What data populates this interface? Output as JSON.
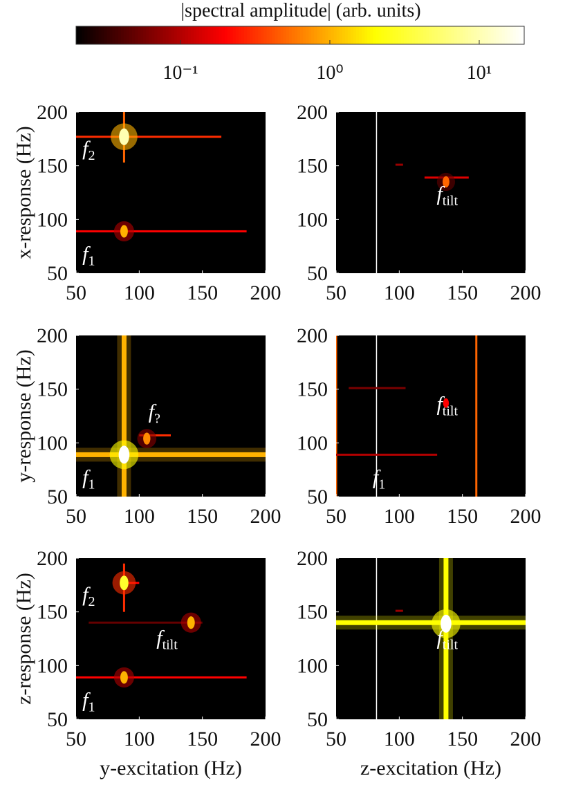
{
  "colorbar": {
    "label": "|spectral amplitude| (arb. units)",
    "scale": "log",
    "lim": [
      0.02,
      20
    ],
    "ticks": [
      {
        "value": 0.1,
        "label": "10⁻¹"
      },
      {
        "value": 1,
        "label": "10⁰"
      },
      {
        "value": 10,
        "label": "10¹"
      }
    ]
  },
  "chart_data": [
    {
      "type": "heatmap",
      "ylabel": "x-response (Hz)",
      "xlim": [
        50,
        200
      ],
      "ylim": [
        50,
        200
      ],
      "xticks": [
        50,
        100,
        150,
        200
      ],
      "yticks": [
        50,
        100,
        150,
        200
      ],
      "lines": [
        {
          "orientation": "v",
          "at": 88,
          "from": 153,
          "to": 200,
          "amplitude": 0.5
        },
        {
          "orientation": "h",
          "at": 177,
          "from": 50,
          "to": 165,
          "amplitude": 0.3
        },
        {
          "orientation": "h",
          "at": 89,
          "from": 50,
          "to": 185,
          "amplitude": 0.2
        }
      ],
      "peaks": [
        {
          "x": 88,
          "y": 177,
          "amplitude": 10
        },
        {
          "x": 88,
          "y": 89,
          "amplitude": 1
        }
      ],
      "annotations": [
        {
          "label": "f",
          "subscript": "2",
          "x": 60,
          "y": 160
        },
        {
          "label": "f",
          "subscript": "1",
          "x": 60,
          "y": 62
        }
      ]
    },
    {
      "type": "heatmap",
      "xlim": [
        50,
        200
      ],
      "ylim": [
        50,
        200
      ],
      "xticks": [
        50,
        100,
        150,
        200
      ],
      "yticks": [
        50,
        100,
        150,
        200
      ],
      "lines": [
        {
          "orientation": "v",
          "at": 82,
          "from": 50,
          "to": 200,
          "amplitude": 20
        },
        {
          "orientation": "h",
          "at": 139,
          "from": 120,
          "to": 155,
          "amplitude": 0.15
        },
        {
          "orientation": "h",
          "at": 151,
          "from": 97,
          "to": 103,
          "amplitude": 0.08
        }
      ],
      "peaks": [
        {
          "x": 137,
          "y": 135,
          "amplitude": 0.5
        }
      ],
      "annotations": [
        {
          "label": "f",
          "subscript": "tilt",
          "x": 138,
          "y": 118
        }
      ]
    },
    {
      "type": "heatmap",
      "ylabel": "y-response (Hz)",
      "xlim": [
        50,
        200
      ],
      "ylim": [
        50,
        200
      ],
      "xticks": [
        50,
        100,
        150,
        200
      ],
      "yticks": [
        50,
        100,
        150,
        200
      ],
      "lines": [
        {
          "orientation": "v",
          "at": 88,
          "from": 50,
          "to": 200,
          "amplitude": 1
        },
        {
          "orientation": "h",
          "at": 89,
          "from": 50,
          "to": 200,
          "amplitude": 1
        },
        {
          "orientation": "h",
          "at": 107,
          "from": 100,
          "to": 125,
          "amplitude": 0.3
        }
      ],
      "peaks": [
        {
          "x": 88,
          "y": 89,
          "amplitude": 20
        },
        {
          "x": 106,
          "y": 104,
          "amplitude": 0.7
        }
      ],
      "annotations": [
        {
          "label": "f",
          "subscript": "?",
          "x": 112,
          "y": 123
        },
        {
          "label": "f",
          "subscript": "1",
          "x": 60,
          "y": 62
        }
      ]
    },
    {
      "type": "heatmap",
      "xlim": [
        50,
        200
      ],
      "ylim": [
        50,
        200
      ],
      "xticks": [
        50,
        100,
        150,
        200
      ],
      "yticks": [
        50,
        100,
        150,
        200
      ],
      "lines": [
        {
          "orientation": "v",
          "at": 82,
          "from": 50,
          "to": 200,
          "amplitude": 20
        },
        {
          "orientation": "v",
          "at": 50,
          "from": 50,
          "to": 200,
          "amplitude": 0.5
        },
        {
          "orientation": "v",
          "at": 161,
          "from": 50,
          "to": 200,
          "amplitude": 0.5
        },
        {
          "orientation": "h",
          "at": 89,
          "from": 50,
          "to": 130,
          "amplitude": 0.1
        },
        {
          "orientation": "h",
          "at": 151,
          "from": 60,
          "to": 105,
          "amplitude": 0.06
        }
      ],
      "peaks": [
        {
          "x": 137,
          "y": 137,
          "amplitude": 0.2
        }
      ],
      "annotations": [
        {
          "label": "f",
          "subscript": "tilt",
          "x": 138,
          "y": 130
        },
        {
          "label": "f",
          "subscript": "1",
          "x": 84,
          "y": 62
        }
      ]
    },
    {
      "type": "heatmap",
      "xlabel": "y-excitation (Hz)",
      "ylabel": "z-response (Hz)",
      "xlim": [
        50,
        200
      ],
      "ylim": [
        50,
        200
      ],
      "xticks": [
        50,
        100,
        150,
        200
      ],
      "yticks": [
        50,
        100,
        150,
        200
      ],
      "lines": [
        {
          "orientation": "v",
          "at": 88,
          "from": 150,
          "to": 195,
          "amplitude": 0.3
        },
        {
          "orientation": "h",
          "at": 177,
          "from": 85,
          "to": 100,
          "amplitude": 0.2
        },
        {
          "orientation": "h",
          "at": 140,
          "from": 60,
          "to": 150,
          "amplitude": 0.05
        },
        {
          "orientation": "h",
          "at": 89,
          "from": 50,
          "to": 185,
          "amplitude": 0.2
        }
      ],
      "peaks": [
        {
          "x": 88,
          "y": 177,
          "amplitude": 3
        },
        {
          "x": 141,
          "y": 140,
          "amplitude": 1
        },
        {
          "x": 88,
          "y": 89,
          "amplitude": 1
        }
      ],
      "annotations": [
        {
          "label": "f",
          "subscript": "2",
          "x": 60,
          "y": 160
        },
        {
          "label": "f",
          "subscript": "tilt",
          "x": 122,
          "y": 120
        },
        {
          "label": "f",
          "subscript": "1",
          "x": 60,
          "y": 62
        }
      ]
    },
    {
      "type": "heatmap",
      "xlabel": "z-excitation (Hz)",
      "xlim": [
        50,
        200
      ],
      "ylim": [
        50,
        200
      ],
      "xticks": [
        50,
        100,
        150,
        200
      ],
      "yticks": [
        50,
        100,
        150,
        200
      ],
      "lines": [
        {
          "orientation": "v",
          "at": 82,
          "from": 50,
          "to": 200,
          "amplitude": 20
        },
        {
          "orientation": "v",
          "at": 137,
          "from": 50,
          "to": 200,
          "amplitude": 2
        },
        {
          "orientation": "h",
          "at": 140,
          "from": 50,
          "to": 200,
          "amplitude": 2
        },
        {
          "orientation": "h",
          "at": 151,
          "from": 97,
          "to": 103,
          "amplitude": 0.08
        }
      ],
      "peaks": [
        {
          "x": 137,
          "y": 139,
          "amplitude": 20
        }
      ],
      "annotations": [
        {
          "label": "f",
          "subscript": "tilt",
          "x": 138,
          "y": 120
        }
      ]
    }
  ]
}
